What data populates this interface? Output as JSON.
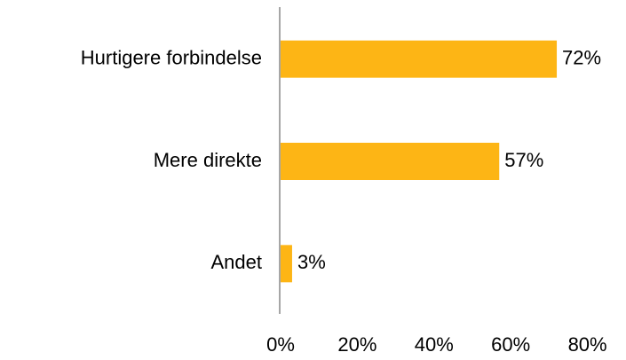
{
  "chart_data": {
    "type": "bar",
    "orientation": "horizontal",
    "categories": [
      "Hurtigere forbindelse",
      "Mere direkte",
      "Andet"
    ],
    "values": [
      72,
      57,
      3
    ],
    "value_labels": [
      "72%",
      "57%",
      "3%"
    ],
    "color": "#fdb515",
    "xlim": [
      0,
      80
    ],
    "xticks": [
      {
        "value": 0,
        "label": "0%"
      },
      {
        "value": 20,
        "label": "20%"
      },
      {
        "value": 40,
        "label": "40%"
      },
      {
        "value": 60,
        "label": "60%"
      },
      {
        "value": 80,
        "label": "80%"
      }
    ],
    "grid": false
  }
}
